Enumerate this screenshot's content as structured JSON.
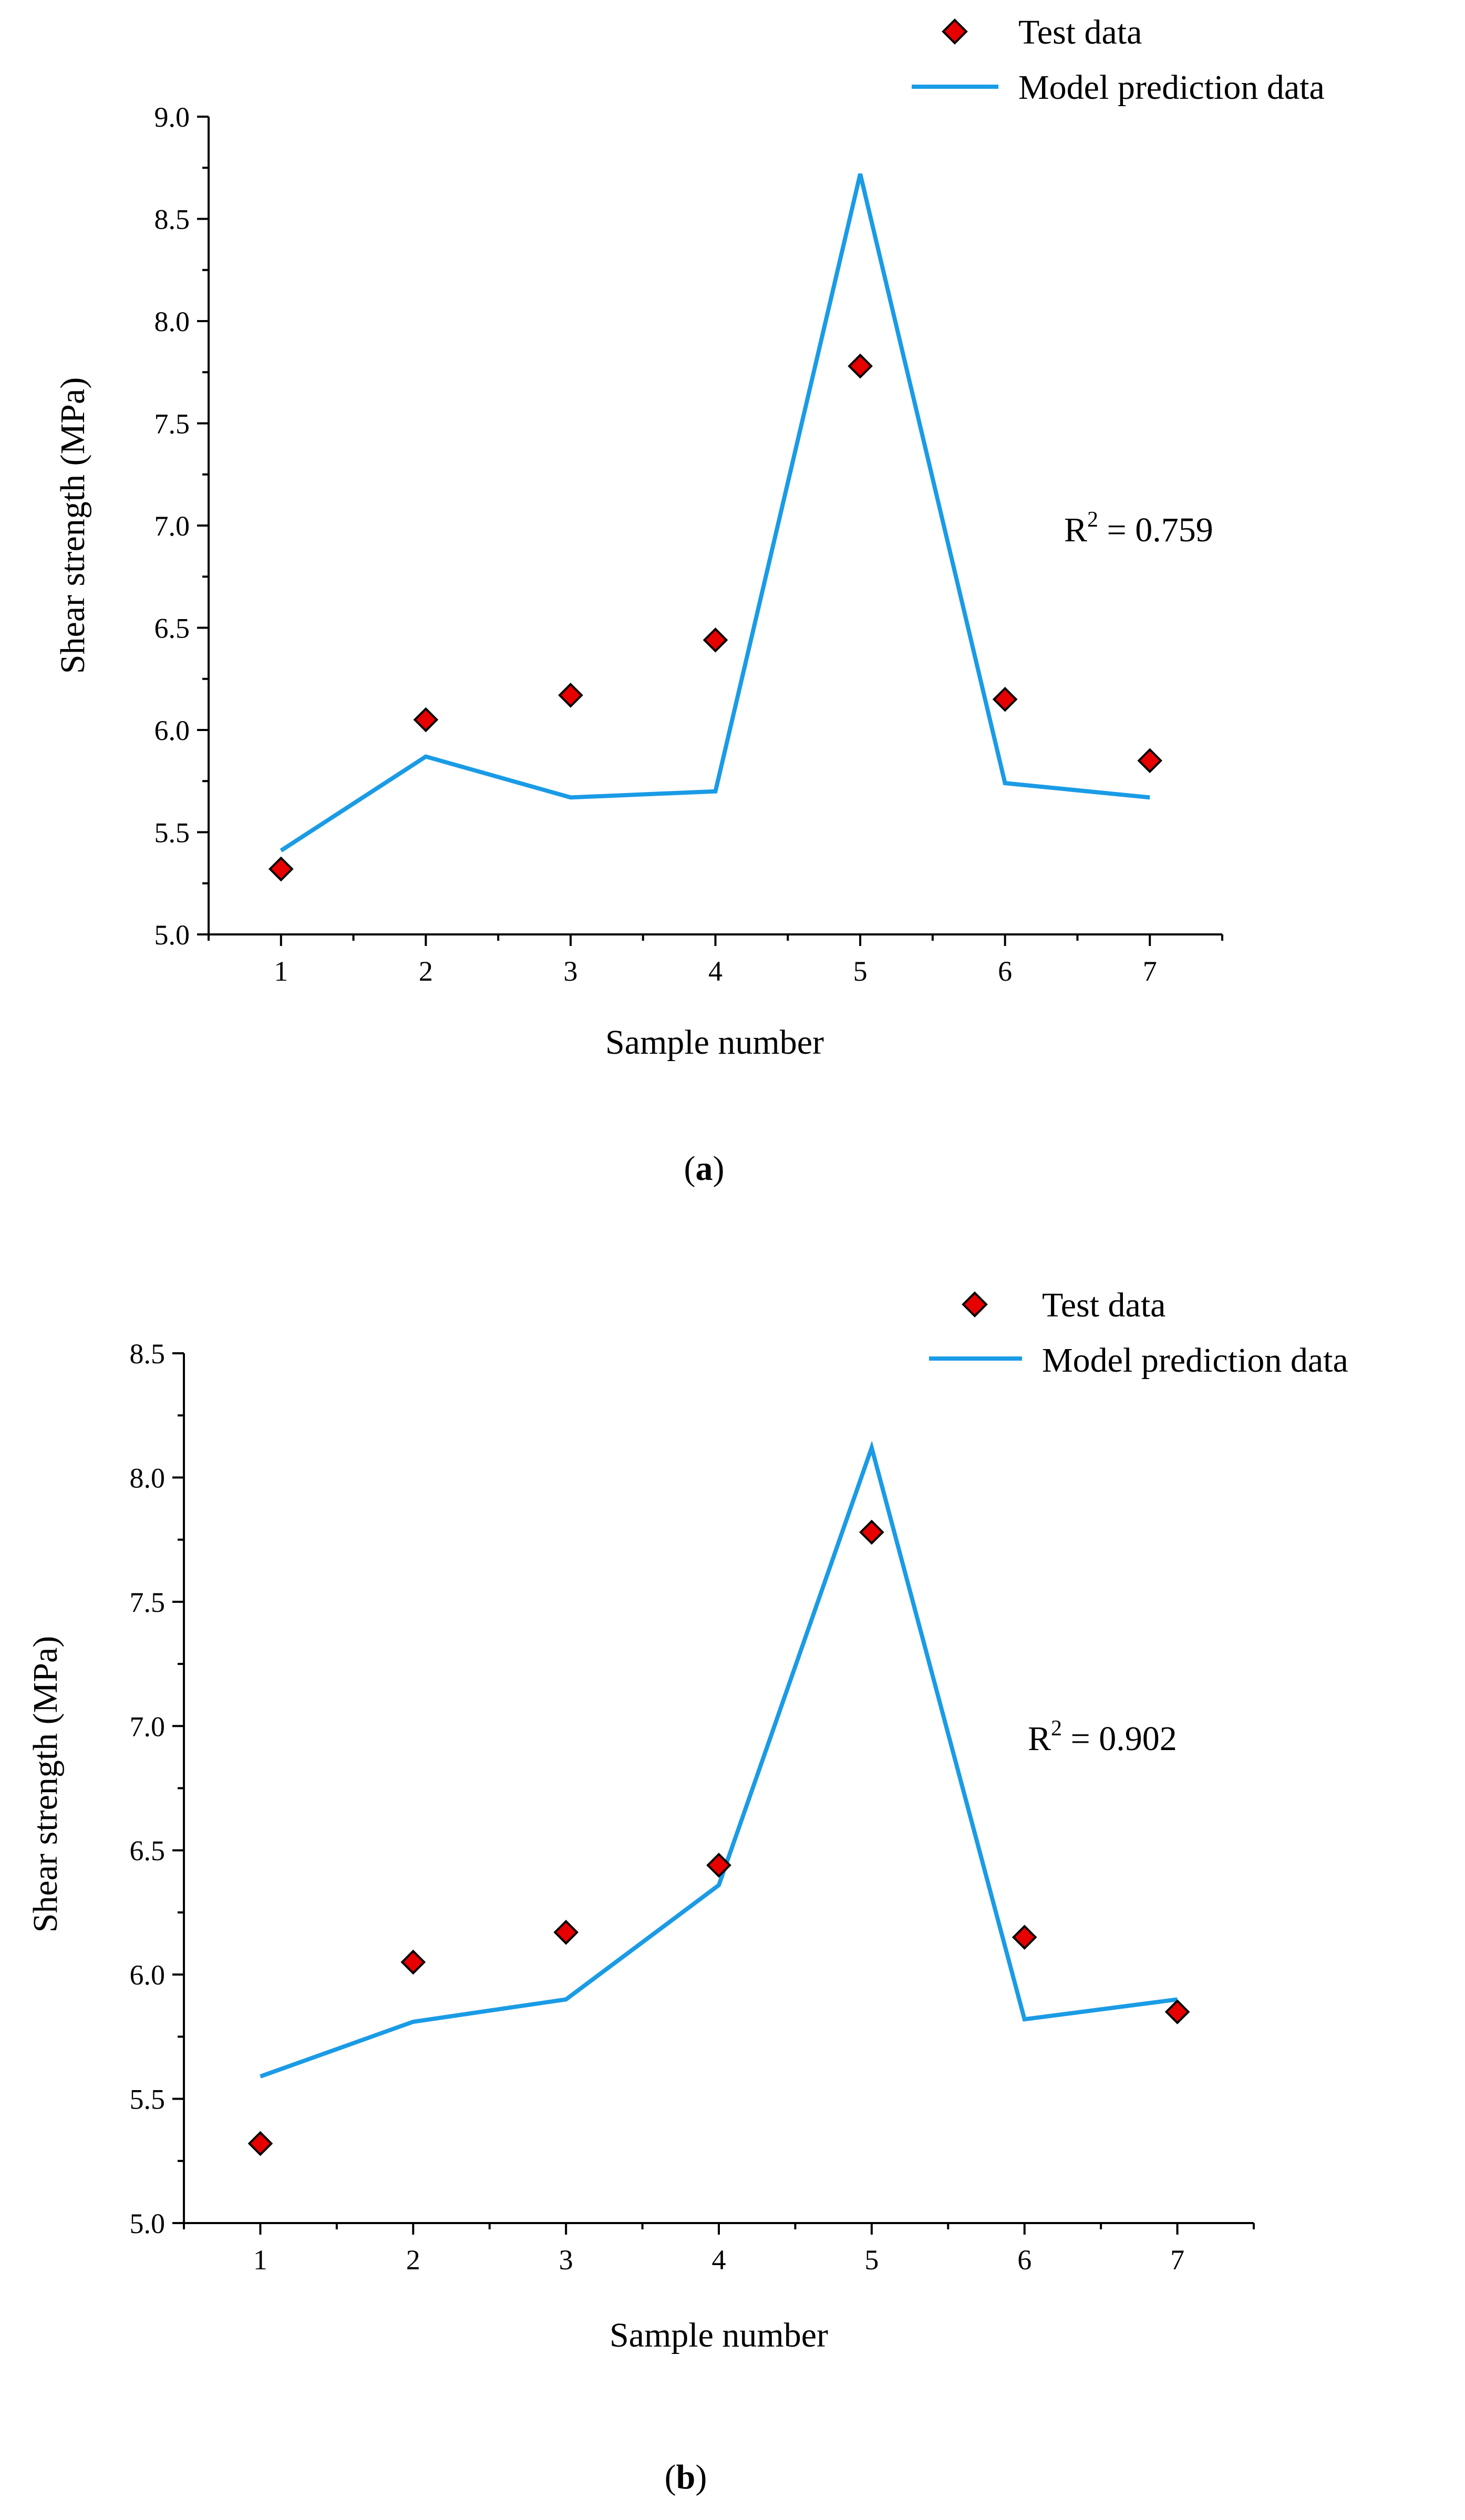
{
  "colors": {
    "test_marker": "#e60000",
    "marker_edge": "#000000",
    "model_line": "#1a9be6",
    "axis": "#000000"
  },
  "chart_data": [
    {
      "type": "line",
      "panel_label": "a",
      "xlabel": "Sample number",
      "ylabel": "Shear strength (MPa)",
      "x": [
        1,
        2,
        3,
        4,
        5,
        6,
        7
      ],
      "xlim": [
        0.5,
        7.5
      ],
      "ylim": [
        5.0,
        9.0
      ],
      "xticks": [
        "1",
        "2",
        "3",
        "4",
        "5",
        "6",
        "7"
      ],
      "yticks": [
        "5.0",
        "5.5",
        "6.0",
        "6.5",
        "7.0",
        "7.5",
        "8.0",
        "8.5",
        "9.0"
      ],
      "series": [
        {
          "name": "Test data",
          "kind": "scatter",
          "marker": "diamond",
          "values": [
            5.32,
            6.05,
            6.17,
            6.44,
            7.78,
            6.15,
            5.85
          ]
        },
        {
          "name": "Model prediction data",
          "kind": "line",
          "values": [
            5.41,
            5.87,
            5.67,
            5.7,
            8.72,
            5.74,
            5.67
          ]
        }
      ],
      "annotation": {
        "base": "R",
        "sup": "2",
        "rest": " = 0.759"
      },
      "legend": "top-right",
      "grid": false
    },
    {
      "type": "line",
      "panel_label": "b",
      "xlabel": "Sample number",
      "ylabel": "Shear strength (MPa)",
      "x": [
        1,
        2,
        3,
        4,
        5,
        6,
        7
      ],
      "xlim": [
        0.5,
        7.5
      ],
      "ylim": [
        5.0,
        8.5
      ],
      "xticks": [
        "1",
        "2",
        "3",
        "4",
        "5",
        "6",
        "7"
      ],
      "yticks": [
        "5.0",
        "5.5",
        "6.0",
        "6.5",
        "7.0",
        "7.5",
        "8.0",
        "8.5"
      ],
      "series": [
        {
          "name": "Test data",
          "kind": "scatter",
          "marker": "diamond",
          "values": [
            5.32,
            6.05,
            6.17,
            6.44,
            7.78,
            6.15,
            5.85
          ]
        },
        {
          "name": "Model prediction data",
          "kind": "line",
          "values": [
            5.59,
            5.81,
            5.9,
            6.36,
            8.12,
            5.82,
            5.9
          ]
        }
      ],
      "annotation": {
        "base": "R",
        "sup": "2",
        "rest": " = 0.902"
      },
      "legend": "top-right",
      "grid": false
    }
  ]
}
